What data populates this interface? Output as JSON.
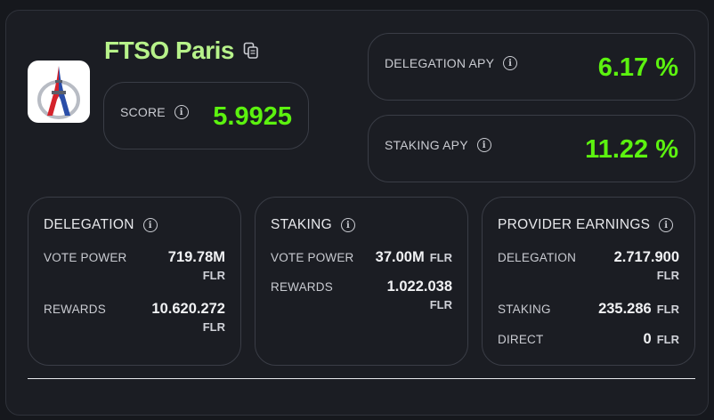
{
  "provider": {
    "name": "FTSO Paris",
    "logo": "eiffel-tower-logo"
  },
  "score": {
    "label": "SCORE",
    "value": "5.9925"
  },
  "delegation_apy": {
    "label": "DELEGATION APY",
    "value": "6.17 %"
  },
  "staking_apy": {
    "label": "STAKING APY",
    "value": "11.22 %"
  },
  "delegation": {
    "title": "DELEGATION",
    "vote_power_label": "VOTE POWER",
    "vote_power_value": "719.78M",
    "vote_power_unit": "FLR",
    "rewards_label": "REWARDS",
    "rewards_value": "10.620.272",
    "rewards_unit": "FLR"
  },
  "staking": {
    "title": "STAKING",
    "vote_power_label": "VOTE POWER",
    "vote_power_value": "37.00M",
    "vote_power_unit": "FLR",
    "rewards_label": "REWARDS",
    "rewards_value": "1.022.038",
    "rewards_unit": "FLR"
  },
  "provider_earnings": {
    "title": "PROVIDER EARNINGS",
    "delegation_label": "DELEGATION",
    "delegation_value": "2.717.900",
    "delegation_unit": "FLR",
    "staking_label": "STAKING",
    "staking_value": "235.286",
    "staking_unit": "FLR",
    "direct_label": "DIRECT",
    "direct_value": "0",
    "direct_unit": "FLR"
  },
  "colors": {
    "accent_green": "#5cf20f",
    "title_green": "#b7f28a",
    "background": "#1b1d23",
    "border": "#3a3d46"
  },
  "icons": {
    "info": "info-icon",
    "copy": "copy-icon"
  }
}
